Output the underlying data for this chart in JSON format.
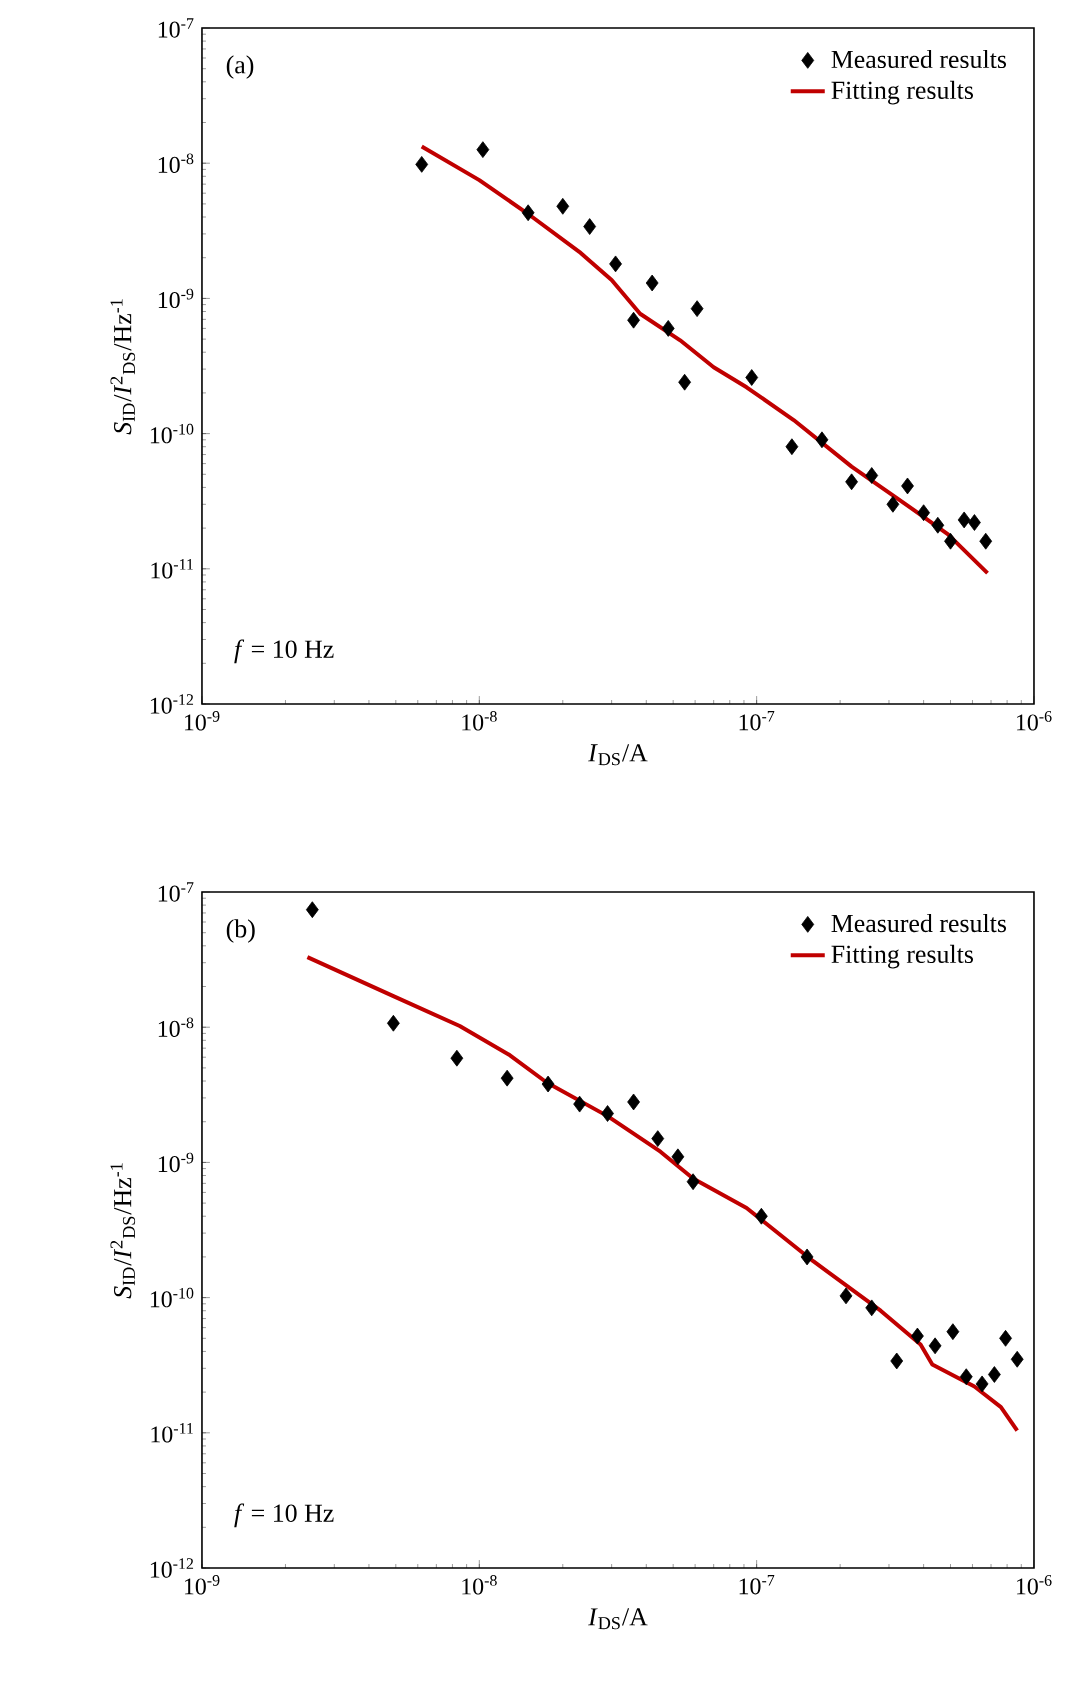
{
  "chart_data": [
    {
      "type": "scatter",
      "xlabel": "*I*$_{DS}$/A",
      "ylabel": "*S*$_{ID}$/*I*$^{2}$$_{DS}$/Hz$^{-1}$",
      "annotations": [
        "(a)",
        "*f* = 10 Hz"
      ],
      "log": "xy",
      "legend": "top right",
      "xlim": [
        1e-09,
        1e-06
      ],
      "ylim": [
        1e-12,
        1e-07
      ],
      "xticks": [
        {
          "value": 1e-09,
          "label": "10$^{-9}$"
        },
        {
          "value": 1e-08,
          "label": "10$^{-8}$"
        },
        {
          "value": 1e-07,
          "label": "10$^{-7}$"
        },
        {
          "value": 1e-06,
          "label": "10$^{-6}$"
        }
      ],
      "yticks": [
        {
          "value": 1e-12,
          "label": "10$^{-12}$"
        },
        {
          "value": 1e-11,
          "label": "10$^{-11}$"
        },
        {
          "value": 1e-10,
          "label": "10$^{-10}$"
        },
        {
          "value": 1e-09,
          "label": "10$^{-9}$"
        },
        {
          "value": 1e-08,
          "label": "10$^{-8}$"
        },
        {
          "value": 1e-07,
          "label": "10$^{-7}$"
        }
      ],
      "series": [
        {
          "name": "Measured results",
          "marker": "diamond",
          "color": "#000000",
          "x": [
            6.2e-09,
            1.03e-08,
            1.5e-08,
            2e-08,
            2.5e-08,
            3.1e-08,
            3.6e-08,
            4.2e-08,
            4.8e-08,
            5.5e-08,
            6.1e-08,
            9.6e-08,
            1.34e-07,
            1.72e-07,
            2.2e-07,
            2.6e-07,
            3.1e-07,
            3.5e-07,
            4e-07,
            4.5e-07,
            5e-07,
            5.6e-07,
            6.1e-07,
            6.7e-07
          ],
          "values": [
            9.8e-09,
            1.26e-08,
            4.3e-09,
            4.8e-09,
            3.4e-09,
            1.8e-09,
            6.9e-10,
            1.3e-09,
            6e-10,
            2.4e-10,
            8.4e-10,
            2.6e-10,
            8e-11,
            9e-11,
            4.4e-11,
            4.9e-11,
            3e-11,
            4.1e-11,
            2.6e-11,
            2.1e-11,
            1.6e-11,
            2.3e-11,
            2.2e-11,
            1.6e-11
          ]
        },
        {
          "name": "Fitting results",
          "type": "line",
          "marker": "none",
          "line_style": "solid",
          "color": "#c00000",
          "x": [
            6.2e-09,
            1e-08,
            1.48e-08,
            2.3e-08,
            3e-08,
            3.8e-08,
            5.3e-08,
            7e-08,
            9.2e-08,
            1.36e-07,
            2.2e-07,
            3.3e-07,
            4.9e-07,
            6.8e-07
          ],
          "values": [
            1.33e-08,
            7.5e-09,
            4.3e-09,
            2.2e-09,
            1.37e-09,
            7.7e-10,
            4.9e-10,
            3.1e-10,
            2.2e-10,
            1.26e-10,
            5.7e-11,
            3.2e-11,
            1.8e-11,
            9.3e-12
          ]
        }
      ]
    },
    {
      "type": "scatter",
      "xlabel": "*I*$_{DS}$/A",
      "ylabel": "*S*$_{ID}$/*I*$^{2}$$_{DS}$/Hz$^{-1}$",
      "annotations": [
        "(b)",
        "*f* = 10 Hz"
      ],
      "log": "xy",
      "legend": "top right",
      "xlim": [
        1e-09,
        1e-06
      ],
      "ylim": [
        1e-12,
        1e-07
      ],
      "xticks": [
        {
          "value": 1e-09,
          "label": "10$^{-9}$"
        },
        {
          "value": 1e-08,
          "label": "10$^{-8}$"
        },
        {
          "value": 1e-07,
          "label": "10$^{-7}$"
        },
        {
          "value": 1e-06,
          "label": "10$^{-6}$"
        }
      ],
      "yticks": [
        {
          "value": 1e-12,
          "label": "10$^{-12}$"
        },
        {
          "value": 1e-11,
          "label": "10$^{-11}$"
        },
        {
          "value": 1e-10,
          "label": "10$^{-10}$"
        },
        {
          "value": 1e-09,
          "label": "10$^{-9}$"
        },
        {
          "value": 1e-08,
          "label": "10$^{-8}$"
        },
        {
          "value": 1e-07,
          "label": "10$^{-7}$"
        }
      ],
      "series": [
        {
          "name": "Measured results",
          "marker": "diamond",
          "color": "#000000",
          "x": [
            2.5e-09,
            4.9e-09,
            8.3e-09,
            1.26e-08,
            1.77e-08,
            2.3e-08,
            2.9e-08,
            3.6e-08,
            4.4e-08,
            5.2e-08,
            5.9e-08,
            1.04e-07,
            1.52e-07,
            2.1e-07,
            2.6e-07,
            3.2e-07,
            3.8e-07,
            4.4e-07,
            5.1e-07,
            5.7e-07,
            6.5e-07,
            7.2e-07,
            7.9e-07,
            8.7e-07
          ],
          "values": [
            7.4e-08,
            1.07e-08,
            5.9e-09,
            4.2e-09,
            3.8e-09,
            2.7e-09,
            2.3e-09,
            2.8e-09,
            1.5e-09,
            1.1e-09,
            7.2e-10,
            4e-10,
            2e-10,
            1.03e-10,
            8.4e-11,
            3.4e-11,
            5.2e-11,
            4.4e-11,
            5.6e-11,
            2.6e-11,
            2.3e-11,
            2.7e-11,
            5e-11,
            3.5e-11
          ]
        },
        {
          "name": "Fitting results",
          "type": "line",
          "marker": "none",
          "line_style": "solid",
          "color": "#c00000",
          "x": [
            2.4e-09,
            4.9e-09,
            8.5e-09,
            1.29e-08,
            1.75e-08,
            2.9e-08,
            4.5e-08,
            5.9e-08,
            9.2e-08,
            1.6e-07,
            2.8e-07,
            3.9e-07,
            4.3e-07,
            6.1e-07,
            7.6e-07,
            8.7e-07
          ],
          "values": [
            3.3e-08,
            1.7e-08,
            1.02e-08,
            6.2e-09,
            3.9e-09,
            2.2e-09,
            1.2e-09,
            7.6e-10,
            4.6e-10,
            1.86e-10,
            8e-11,
            4.5e-11,
            3.2e-11,
            2.2e-11,
            1.55e-11,
            1.04e-11
          ]
        }
      ]
    }
  ]
}
